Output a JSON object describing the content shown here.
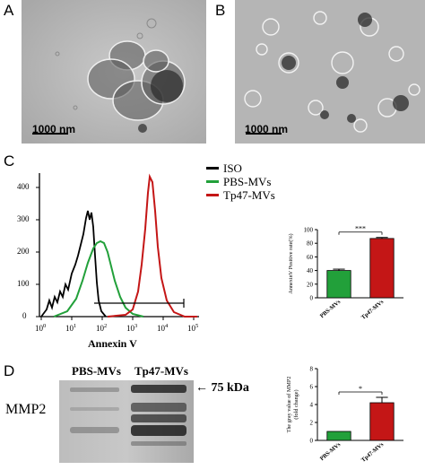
{
  "panels": {
    "A": {
      "letter": "A",
      "scale_label": "1000 nm"
    },
    "B": {
      "letter": "B",
      "scale_label": "1000 nm"
    },
    "C": {
      "letter": "C"
    },
    "D": {
      "letter": "D"
    }
  },
  "flow_histogram": {
    "x_label": "Annexin V",
    "x_tick_labels": [
      "10",
      "10",
      "10",
      "10",
      "10",
      "10"
    ],
    "x_tick_exponents": [
      "0",
      "1",
      "2",
      "3",
      "4",
      "5"
    ],
    "y_tick_labels": [
      "0",
      "100",
      "200",
      "300",
      "400"
    ],
    "legend": [
      {
        "label": "ISO",
        "color": "#000000"
      },
      {
        "label": "PBS-MVs",
        "color": "#22a03a"
      },
      {
        "label": "Tp47-MVs",
        "color": "#c41616"
      }
    ]
  },
  "bar_chart_c": {
    "ylabel": "AnnexinV Positive rate(%)",
    "y_ticks": [
      "0",
      "20",
      "40",
      "60",
      "80",
      "100"
    ],
    "significance": "***"
  },
  "blot": {
    "lane_labels": [
      "PBS-MVs",
      "Tp47-MVs"
    ],
    "protein_label": "MMP2",
    "marker_label": "75 kDa"
  },
  "bar_chart_d": {
    "ylabel_line1": "The gray value of MMP2",
    "ylabel_line2": "(fold change)",
    "y_ticks": [
      "0",
      "2",
      "4",
      "6",
      "8"
    ],
    "significance": "*"
  },
  "chart_data": [
    {
      "type": "bar",
      "categories": [
        "PBS-MVs",
        "Tp47-MVs"
      ],
      "values": [
        40,
        87
      ],
      "errors": [
        2,
        1.5
      ],
      "colors": [
        "#22a03a",
        "#c41616"
      ],
      "ylabel": "AnnexinV Positive rate(%)",
      "ylim": [
        0,
        100
      ]
    },
    {
      "type": "bar",
      "categories": [
        "PBS-MVs",
        "Tp47-MVs"
      ],
      "values": [
        1,
        4.2
      ],
      "errors": [
        0,
        0.6
      ],
      "colors": [
        "#22a03a",
        "#c41616"
      ],
      "ylabel": "The gray value of MMP2 (fold change)",
      "ylim": [
        0,
        8
      ]
    }
  ]
}
